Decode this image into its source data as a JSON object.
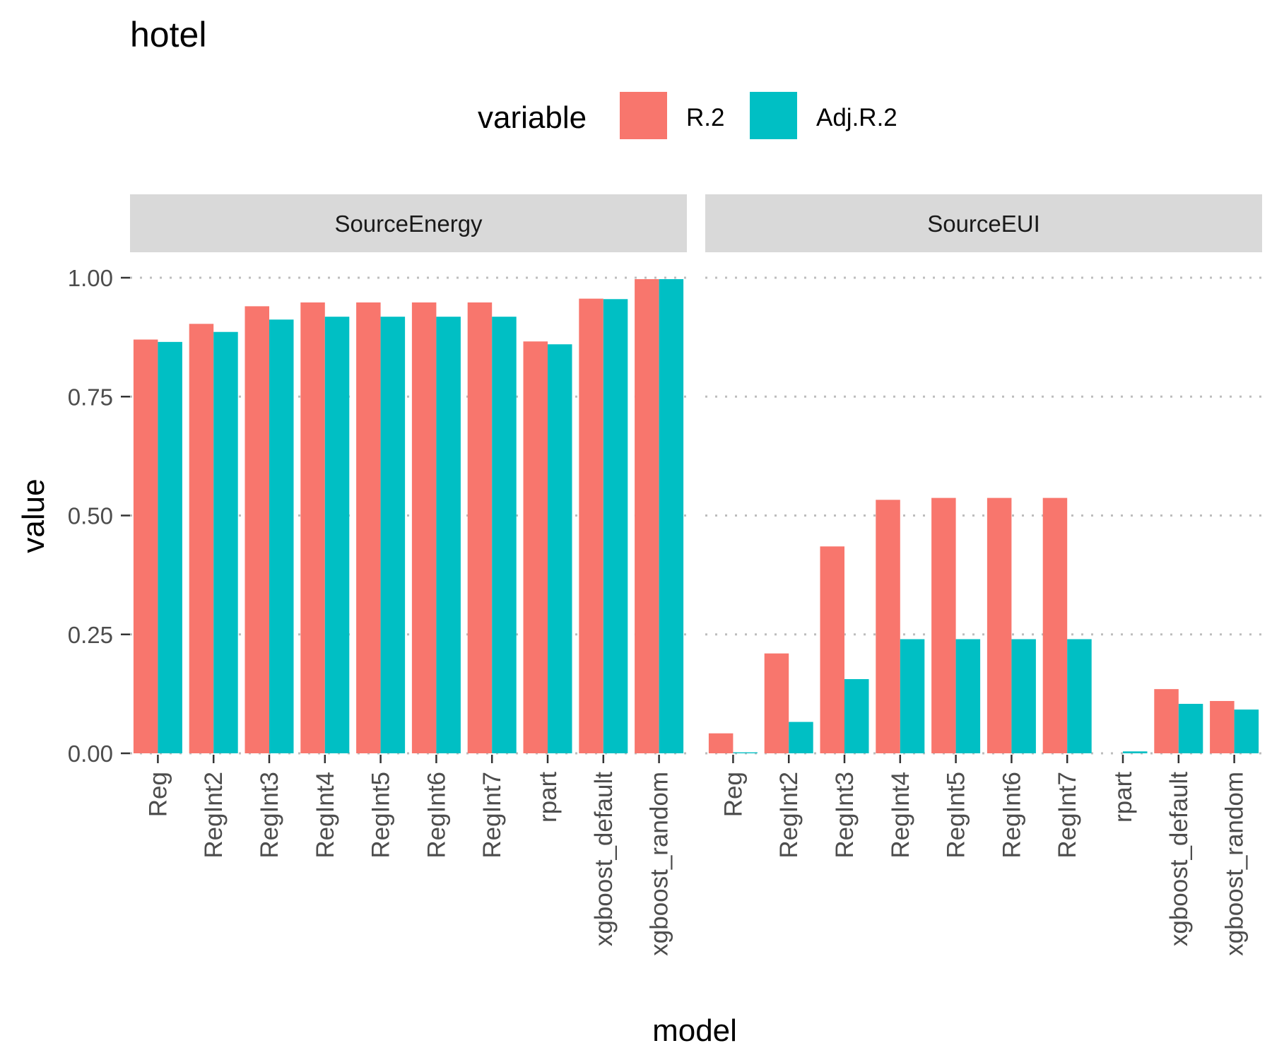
{
  "chart_data": {
    "type": "bar",
    "title": "hotel",
    "xlabel": "model",
    "ylabel": "value",
    "ylim": [
      0,
      1
    ],
    "yticks": [
      "0.00",
      "0.25",
      "0.50",
      "0.75",
      "1.00"
    ],
    "ytick_values": [
      0,
      0.25,
      0.5,
      0.75,
      1.0
    ],
    "grid": "major horizontal dotted",
    "legend": {
      "title": "variable",
      "position": "top",
      "entries": [
        "R.2",
        "Adj.R.2"
      ]
    },
    "categories": [
      "Reg",
      "RegInt2",
      "RegInt3",
      "RegInt4",
      "RegInt5",
      "RegInt6",
      "RegInt7",
      "rpart",
      "xgboost_default",
      "xgboost_random"
    ],
    "colors": {
      "R.2": "#F8766D",
      "Adj.R.2": "#00BFC4"
    },
    "facets": [
      {
        "name": "SourceEnergy",
        "series": [
          {
            "name": "R.2",
            "values": [
              0.87,
              0.903,
              0.94,
              0.948,
              0.948,
              0.948,
              0.948,
              0.866,
              0.956,
              0.997
            ]
          },
          {
            "name": "Adj.R.2",
            "values": [
              0.865,
              0.886,
              0.912,
              0.918,
              0.918,
              0.918,
              0.918,
              0.86,
              0.955,
              0.997
            ]
          }
        ]
      },
      {
        "name": "SourceEUI",
        "series": [
          {
            "name": "R.2",
            "values": [
              0.042,
              0.21,
              0.435,
              0.533,
              0.537,
              0.537,
              0.537,
              0.0,
              0.135,
              0.11
            ]
          },
          {
            "name": "Adj.R.2",
            "values": [
              0.002,
              0.066,
              0.156,
              0.24,
              0.24,
              0.24,
              0.24,
              0.004,
              0.104,
              0.092
            ]
          }
        ]
      }
    ]
  }
}
